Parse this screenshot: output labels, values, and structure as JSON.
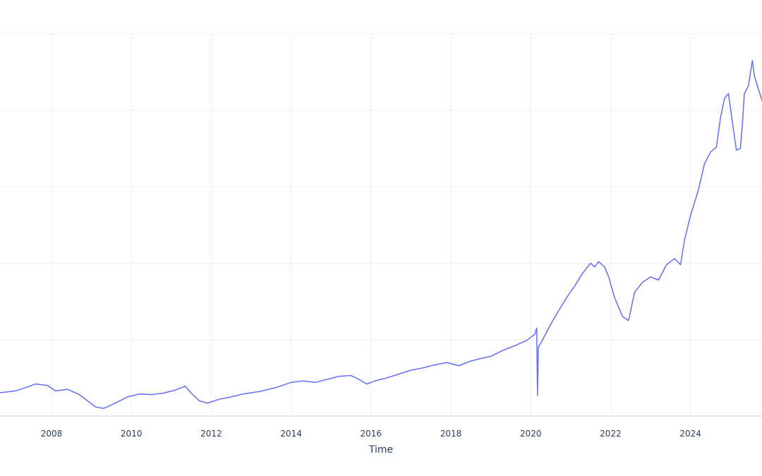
{
  "chart_data": {
    "type": "line",
    "title": "",
    "xlabel": "Time",
    "ylabel": "",
    "xlim": [
      2006.5,
      2025.9
    ],
    "ylim": [
      0,
      5
    ],
    "x_ticks": [
      2008,
      2010,
      2012,
      2014,
      2016,
      2018,
      2020,
      2022,
      2024
    ],
    "y_gridlines": [
      0,
      1,
      2,
      3,
      4,
      5
    ],
    "grid": true,
    "series": [
      {
        "color": "#636efa",
        "x": [
          2006.5,
          2006.8,
          2007.1,
          2007.4,
          2007.6,
          2007.9,
          2008.1,
          2008.4,
          2008.7,
          2008.9,
          2009.1,
          2009.3,
          2009.6,
          2009.9,
          2010.2,
          2010.5,
          2010.8,
          2011.1,
          2011.35,
          2011.5,
          2011.7,
          2011.9,
          2012.2,
          2012.5,
          2012.8,
          2013.2,
          2013.6,
          2014.0,
          2014.3,
          2014.6,
          2014.9,
          2015.2,
          2015.5,
          2015.7,
          2015.9,
          2016.1,
          2016.4,
          2016.7,
          2017.0,
          2017.3,
          2017.6,
          2017.9,
          2018.2,
          2018.5,
          2018.8,
          2019.0,
          2019.3,
          2019.6,
          2019.9,
          2020.1,
          2020.15,
          2020.17,
          2020.19,
          2020.3,
          2020.5,
          2020.7,
          2020.9,
          2021.1,
          2021.3,
          2021.5,
          2021.6,
          2021.7,
          2021.85,
          2021.95,
          2022.1,
          2022.3,
          2022.45,
          2022.6,
          2022.8,
          2023.0,
          2023.2,
          2023.4,
          2023.6,
          2023.75,
          2023.85,
          2024.0,
          2024.2,
          2024.35,
          2024.5,
          2024.65,
          2024.75,
          2024.85,
          2024.95,
          2025.05,
          2025.15,
          2025.25,
          2025.3,
          2025.35,
          2025.45,
          2025.55,
          2025.6,
          2025.7,
          2025.8,
          2025.9
        ],
        "values": [
          0.3,
          0.31,
          0.33,
          0.38,
          0.42,
          0.4,
          0.33,
          0.35,
          0.28,
          0.2,
          0.12,
          0.1,
          0.17,
          0.25,
          0.29,
          0.28,
          0.3,
          0.34,
          0.39,
          0.3,
          0.2,
          0.17,
          0.22,
          0.25,
          0.29,
          0.32,
          0.37,
          0.44,
          0.46,
          0.44,
          0.48,
          0.52,
          0.53,
          0.48,
          0.42,
          0.46,
          0.5,
          0.55,
          0.6,
          0.63,
          0.67,
          0.7,
          0.66,
          0.72,
          0.76,
          0.78,
          0.86,
          0.92,
          0.99,
          1.07,
          1.15,
          0.27,
          0.9,
          1.0,
          1.2,
          1.38,
          1.55,
          1.7,
          1.87,
          2.0,
          1.95,
          2.02,
          1.95,
          1.82,
          1.55,
          1.3,
          1.25,
          1.62,
          1.75,
          1.82,
          1.78,
          1.98,
          2.06,
          1.98,
          2.3,
          2.62,
          2.96,
          3.3,
          3.45,
          3.52,
          3.9,
          4.15,
          4.22,
          3.85,
          3.48,
          3.5,
          3.82,
          4.22,
          4.32,
          4.65,
          4.45,
          4.28,
          4.12,
          4.25
        ]
      }
    ]
  }
}
